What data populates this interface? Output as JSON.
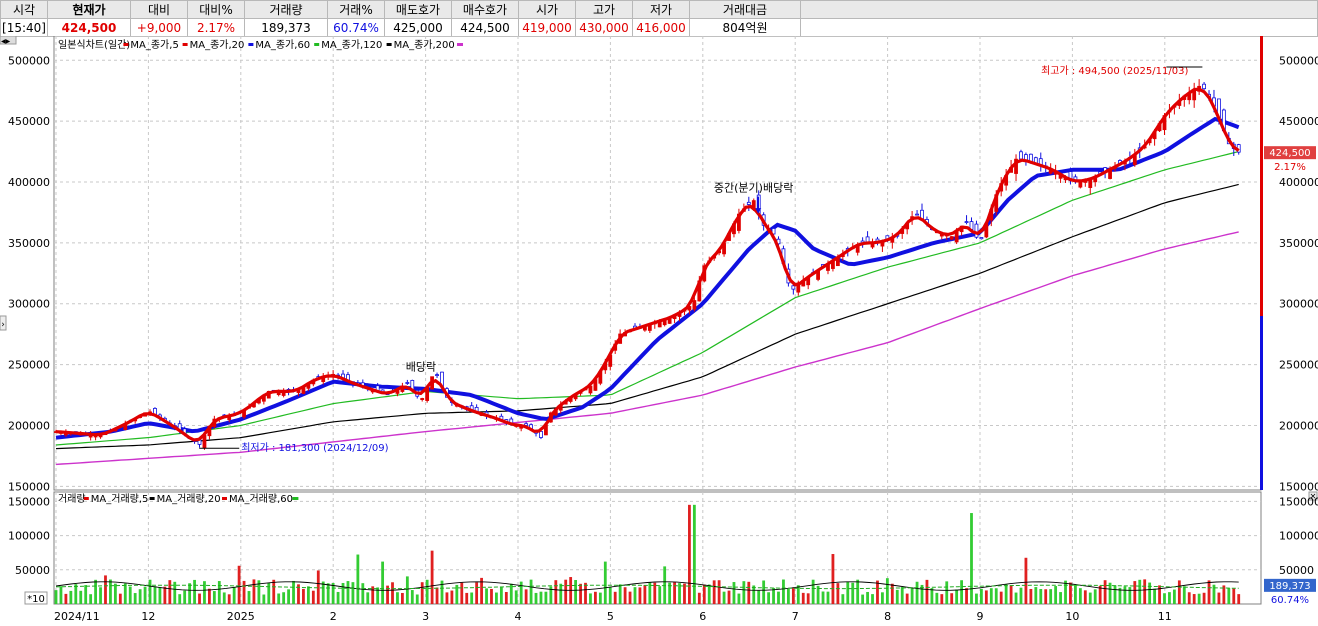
{
  "quote": {
    "headers": [
      "시각",
      "현재가",
      "대비",
      "대비%",
      "거래량",
      "거래%",
      "매도호가",
      "매수호가",
      "시가",
      "고가",
      "저가",
      "거래대금"
    ],
    "values": [
      "[15:40]",
      "424,500",
      "+9,000",
      "2.17%",
      "189,373",
      "60.74%",
      "425,000",
      "424,500",
      "419,000",
      "430,000",
      "416,000",
      "804억원"
    ],
    "colors": [
      "#000000",
      "#e00000",
      "#e00000",
      "#e00000",
      "#000000",
      "#1010e0",
      "#000000",
      "#000000",
      "#e00000",
      "#e00000",
      "#e00000",
      "#000000"
    ]
  },
  "chart_data": {
    "type": "candlestick",
    "price_panel": {
      "legend": [
        "일본식차트(일간)",
        "MA_종가,5",
        "MA_종가,20",
        "MA_종가,60",
        "MA_종가,120",
        "MA_종가,200"
      ],
      "legend_colors": [
        "#000000",
        "#e00000",
        "#e00000",
        "#1010e0",
        "#22bb22",
        "#000000",
        "#cc33cc"
      ],
      "y_ticks": [
        500000,
        450000,
        400000,
        350000,
        300000,
        250000,
        200000,
        150000
      ],
      "y_tick_labels": [
        "500000",
        "450000",
        "400000",
        "350000",
        "300000",
        "250000",
        "200000",
        "150000"
      ],
      "ylim": [
        147000,
        515000
      ],
      "current_price_label": "424,500",
      "current_change_label": "2.17%",
      "annotations": {
        "high": "최고가 : 494,500 (2025/11/03)",
        "low": "최저가 : 181,300 (2024/12/09)",
        "dividend1": "배당락",
        "dividend2": "중간(분기)배당락"
      },
      "close_series": [
        {
          "m": 0,
          "v": 195000
        },
        {
          "m": 0.5,
          "v": 192000
        },
        {
          "m": 0.8,
          "v": 203000
        },
        {
          "m": 1.0,
          "v": 212000
        },
        {
          "m": 1.3,
          "v": 198000
        },
        {
          "m": 1.55,
          "v": 184000
        },
        {
          "m": 1.7,
          "v": 205000
        },
        {
          "m": 2.0,
          "v": 210000
        },
        {
          "m": 2.3,
          "v": 228000
        },
        {
          "m": 2.6,
          "v": 228000
        },
        {
          "m": 2.8,
          "v": 238000
        },
        {
          "m": 3.0,
          "v": 242000
        },
        {
          "m": 3.2,
          "v": 235000
        },
        {
          "m": 3.4,
          "v": 230000
        },
        {
          "m": 3.6,
          "v": 225000
        },
        {
          "m": 3.8,
          "v": 235000
        },
        {
          "m": 3.95,
          "v": 220000
        },
        {
          "m": 4.1,
          "v": 245000
        },
        {
          "m": 4.25,
          "v": 220000
        },
        {
          "m": 4.5,
          "v": 212000
        },
        {
          "m": 4.8,
          "v": 205000
        },
        {
          "m": 4.95,
          "v": 200000
        },
        {
          "m": 5.1,
          "v": 200000
        },
        {
          "m": 5.25,
          "v": 190000
        },
        {
          "m": 5.35,
          "v": 210000
        },
        {
          "m": 5.6,
          "v": 225000
        },
        {
          "m": 5.8,
          "v": 233000
        },
        {
          "m": 6.0,
          "v": 258000
        },
        {
          "m": 6.1,
          "v": 275000
        },
        {
          "m": 6.3,
          "v": 280000
        },
        {
          "m": 6.5,
          "v": 285000
        },
        {
          "m": 6.7,
          "v": 290000
        },
        {
          "m": 6.9,
          "v": 300000
        },
        {
          "m": 7.0,
          "v": 330000
        },
        {
          "m": 7.2,
          "v": 345000
        },
        {
          "m": 7.4,
          "v": 375000
        },
        {
          "m": 7.55,
          "v": 385000
        },
        {
          "m": 7.65,
          "v": 365000
        },
        {
          "m": 7.8,
          "v": 355000
        },
        {
          "m": 7.95,
          "v": 310000
        },
        {
          "m": 8.1,
          "v": 320000
        },
        {
          "m": 8.3,
          "v": 330000
        },
        {
          "m": 8.5,
          "v": 340000
        },
        {
          "m": 8.7,
          "v": 350000
        },
        {
          "m": 8.9,
          "v": 350000
        },
        {
          "m": 9.1,
          "v": 355000
        },
        {
          "m": 9.3,
          "v": 375000
        },
        {
          "m": 9.5,
          "v": 360000
        },
        {
          "m": 9.7,
          "v": 355000
        },
        {
          "m": 9.85,
          "v": 368000
        },
        {
          "m": 10.0,
          "v": 350000
        },
        {
          "m": 10.2,
          "v": 395000
        },
        {
          "m": 10.4,
          "v": 420000
        },
        {
          "m": 10.6,
          "v": 415000
        },
        {
          "m": 10.8,
          "v": 410000
        },
        {
          "m": 11.0,
          "v": 400000
        },
        {
          "m": 11.2,
          "v": 402000
        },
        {
          "m": 11.4,
          "v": 410000
        },
        {
          "m": 11.6,
          "v": 418000
        },
        {
          "m": 11.8,
          "v": 430000
        },
        {
          "m": 12.0,
          "v": 455000
        },
        {
          "m": 12.2,
          "v": 470000
        },
        {
          "m": 12.4,
          "v": 480000
        },
        {
          "m": 12.55,
          "v": 460000
        },
        {
          "m": 12.7,
          "v": 430000
        },
        {
          "m": 12.8,
          "v": 424500
        }
      ],
      "ma60_series": [
        {
          "m": 0,
          "v": 190000
        },
        {
          "m": 0.6,
          "v": 195000
        },
        {
          "m": 1.0,
          "v": 202000
        },
        {
          "m": 1.5,
          "v": 195000
        },
        {
          "m": 2.0,
          "v": 205000
        },
        {
          "m": 2.5,
          "v": 220000
        },
        {
          "m": 3.0,
          "v": 236000
        },
        {
          "m": 3.5,
          "v": 232000
        },
        {
          "m": 4.0,
          "v": 230000
        },
        {
          "m": 4.5,
          "v": 225000
        },
        {
          "m": 5.0,
          "v": 210000
        },
        {
          "m": 5.3,
          "v": 205000
        },
        {
          "m": 5.7,
          "v": 215000
        },
        {
          "m": 6.0,
          "v": 230000
        },
        {
          "m": 6.5,
          "v": 270000
        },
        {
          "m": 7.0,
          "v": 300000
        },
        {
          "m": 7.5,
          "v": 345000
        },
        {
          "m": 7.8,
          "v": 365000
        },
        {
          "m": 8.0,
          "v": 360000
        },
        {
          "m": 8.2,
          "v": 345000
        },
        {
          "m": 8.6,
          "v": 332000
        },
        {
          "m": 9.0,
          "v": 338000
        },
        {
          "m": 9.5,
          "v": 350000
        },
        {
          "m": 10.0,
          "v": 358000
        },
        {
          "m": 10.3,
          "v": 385000
        },
        {
          "m": 10.6,
          "v": 405000
        },
        {
          "m": 11.0,
          "v": 410000
        },
        {
          "m": 11.5,
          "v": 410000
        },
        {
          "m": 12.0,
          "v": 425000
        },
        {
          "m": 12.3,
          "v": 440000
        },
        {
          "m": 12.55,
          "v": 452000
        },
        {
          "m": 12.8,
          "v": 445000
        }
      ],
      "ma120_series": [
        {
          "m": 0,
          "v": 184000
        },
        {
          "m": 1,
          "v": 190000
        },
        {
          "m": 2,
          "v": 200000
        },
        {
          "m": 3,
          "v": 218000
        },
        {
          "m": 4,
          "v": 228000
        },
        {
          "m": 5,
          "v": 222000
        },
        {
          "m": 6,
          "v": 225000
        },
        {
          "m": 7,
          "v": 260000
        },
        {
          "m": 8,
          "v": 305000
        },
        {
          "m": 9,
          "v": 330000
        },
        {
          "m": 10,
          "v": 350000
        },
        {
          "m": 11,
          "v": 385000
        },
        {
          "m": 12,
          "v": 410000
        },
        {
          "m": 12.8,
          "v": 425000
        }
      ],
      "ma200_series": [
        {
          "m": 0,
          "v": 181000
        },
        {
          "m": 1,
          "v": 184000
        },
        {
          "m": 2,
          "v": 190000
        },
        {
          "m": 3,
          "v": 203000
        },
        {
          "m": 4,
          "v": 210000
        },
        {
          "m": 5,
          "v": 212000
        },
        {
          "m": 6,
          "v": 218000
        },
        {
          "m": 7,
          "v": 240000
        },
        {
          "m": 8,
          "v": 275000
        },
        {
          "m": 9,
          "v": 300000
        },
        {
          "m": 10,
          "v": 325000
        },
        {
          "m": 11,
          "v": 355000
        },
        {
          "m": 12,
          "v": 383000
        },
        {
          "m": 12.8,
          "v": 398000
        }
      ],
      "extra_series": [
        {
          "m": 0,
          "v": 168000
        },
        {
          "m": 2,
          "v": 178000
        },
        {
          "m": 4,
          "v": 195000
        },
        {
          "m": 6,
          "v": 210000
        },
        {
          "m": 7,
          "v": 225000
        },
        {
          "m": 8,
          "v": 248000
        },
        {
          "m": 9,
          "v": 268000
        },
        {
          "m": 10,
          "v": 296000
        },
        {
          "m": 11,
          "v": 323000
        },
        {
          "m": 12,
          "v": 345000
        },
        {
          "m": 12.8,
          "v": 359000
        }
      ]
    },
    "volume_panel": {
      "legend": [
        "거래량",
        "MA_거래량,5",
        "MA_거래량,20",
        "MA_거래량,60"
      ],
      "legend_colors": [
        "#000000",
        "#e00000",
        "#000000",
        "#e00000",
        "#22bb22"
      ],
      "y_ticks": [
        150000,
        100000,
        50000
      ],
      "y_tick_labels": [
        "150000",
        "100000",
        "50000"
      ],
      "ylim": [
        0,
        155000
      ],
      "unit_label": "*10",
      "current_volume_label": "189,373",
      "current_ratio_label": "60.74%",
      "base_level": 25000,
      "spikes": [
        {
          "m": 6.88,
          "v": 145000
        },
        {
          "m": 9.9,
          "v": 133000
        },
        {
          "m": 3.55,
          "v": 62000
        },
        {
          "m": 4.05,
          "v": 78000
        },
        {
          "m": 5.95,
          "v": 62000
        },
        {
          "m": 6.6,
          "v": 55000
        }
      ]
    },
    "x_axis": {
      "labels": [
        "2024/11",
        "12",
        "2025",
        "2",
        "3",
        "4",
        "5",
        "6",
        "7",
        "8",
        "9",
        "10",
        "11"
      ],
      "month_index": [
        0,
        1,
        2,
        3,
        4,
        5,
        6,
        7,
        8,
        9,
        10,
        11,
        12
      ]
    }
  }
}
